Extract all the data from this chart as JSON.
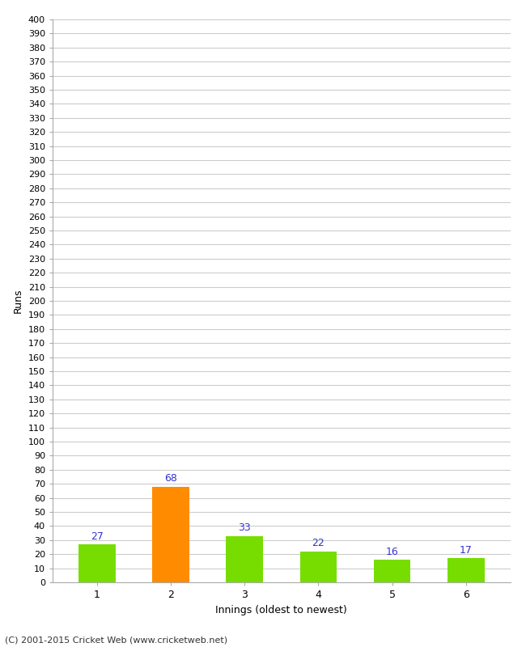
{
  "title": "",
  "categories": [
    "1",
    "2",
    "3",
    "4",
    "5",
    "6"
  ],
  "values": [
    27,
    68,
    33,
    22,
    16,
    17
  ],
  "bar_colors": [
    "#77dd00",
    "#ff8c00",
    "#77dd00",
    "#77dd00",
    "#77dd00",
    "#77dd00"
  ],
  "ylabel": "Runs",
  "xlabel": "Innings (oldest to newest)",
  "ylim": [
    0,
    400
  ],
  "ytick_step": 10,
  "value_label_color": "#3333cc",
  "footer": "(C) 2001-2015 Cricket Web (www.cricketweb.net)",
  "background_color": "#ffffff",
  "grid_color": "#cccccc",
  "bar_width": 0.5
}
